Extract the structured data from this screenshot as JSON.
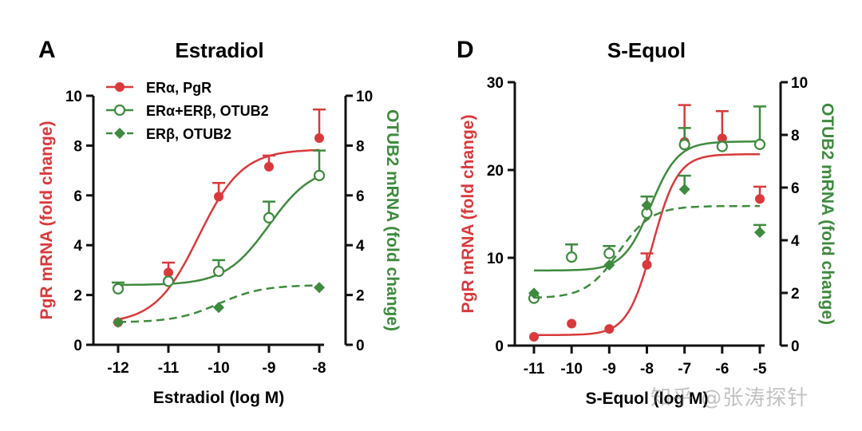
{
  "colors": {
    "red": "#d9393b",
    "green": "#3e8a3e",
    "axis": "#111111"
  },
  "watermark": "知乎 @张涛探针",
  "chart_data": [
    {
      "type": "line",
      "panel_label": "A",
      "title": "Estradiol",
      "xlabel": "Estradiol (log M)",
      "ylabel_left": "PgR mRNA (fold change)",
      "ylabel_right": "OTUB2 mRNA (fold change)",
      "xlim": [
        -12,
        -8
      ],
      "xticks": [
        -12,
        -11,
        -10,
        -9,
        -8
      ],
      "ylim_left": [
        0,
        10
      ],
      "yticks_left": [
        0,
        2,
        4,
        6,
        8,
        10
      ],
      "ylim_right": [
        0,
        10
      ],
      "yticks_right": [
        0,
        2,
        4,
        6,
        8,
        10
      ],
      "legend": {
        "placement": "top-left",
        "entries": [
          "ERα, PgR",
          "ERα+ERβ, OTUB2",
          "ERβ, OTUB2"
        ]
      },
      "series": [
        {
          "name": "ERα, PgR",
          "axis": "left",
          "color": "red",
          "marker": "filled-circle",
          "line": "solid",
          "x": [
            -12,
            -11,
            -10,
            -9,
            -8
          ],
          "y": [
            0.9,
            2.9,
            5.95,
            7.15,
            8.3
          ],
          "err_upper": [
            null,
            3.3,
            6.5,
            7.6,
            9.45
          ],
          "fit": {
            "bottom": 0.85,
            "top": 7.85,
            "logEC50": -10.4,
            "hill": 1
          }
        },
        {
          "name": "ERα+ERβ, OTUB2",
          "axis": "right",
          "color": "green",
          "marker": "open-circle",
          "line": "solid",
          "x": [
            -12,
            -11,
            -10,
            -9,
            -8
          ],
          "y": [
            2.25,
            2.55,
            2.95,
            5.1,
            6.8
          ],
          "err_upper": [
            2.5,
            null,
            3.4,
            5.75,
            7.8
          ],
          "fit": {
            "bottom": 2.4,
            "top": 7.2,
            "logEC50": -9.0,
            "hill": 1
          }
        },
        {
          "name": "ERβ, OTUB2",
          "axis": "right",
          "color": "green",
          "marker": "filled-diamond",
          "line": "dashed",
          "x": [
            -12,
            -10,
            -8
          ],
          "y": [
            0.9,
            1.5,
            2.3
          ],
          "err_upper": [
            null,
            null,
            null
          ],
          "fit": {
            "bottom": 0.9,
            "top": 2.4,
            "logEC50": -10,
            "hill": 1
          }
        }
      ]
    },
    {
      "type": "line",
      "panel_label": "D",
      "title": "S-Equol",
      "xlabel": "S-Equol (log M)",
      "ylabel_left": "PgR mRNA (fold change)",
      "ylabel_right": "OTUB2 mRNA (fold change)",
      "xlim": [
        -11,
        -5
      ],
      "xticks": [
        -11,
        -10,
        -9,
        -8,
        -7,
        -6,
        -5
      ],
      "ylim_left": [
        0,
        30
      ],
      "yticks_left": [
        0,
        10,
        20,
        30
      ],
      "ylim_right": [
        0,
        10
      ],
      "yticks_right": [
        0,
        2,
        4,
        6,
        8,
        10
      ],
      "series": [
        {
          "name": "ERα, PgR",
          "axis": "left",
          "color": "red",
          "marker": "filled-circle",
          "line": "solid",
          "x": [
            -11,
            -10,
            -9,
            -8,
            -7,
            -6,
            -5
          ],
          "y": [
            1.0,
            2.5,
            1.9,
            9.2,
            23.2,
            23.6,
            16.7
          ],
          "err_upper": [
            null,
            null,
            null,
            10.5,
            27.4,
            26.7,
            18.1
          ],
          "fit": {
            "bottom": 1.2,
            "top": 21.8,
            "logEC50": -7.85,
            "hill": 1.3
          }
        },
        {
          "name": "ERα+ERβ, OTUB2",
          "axis": "right",
          "color": "green",
          "marker": "open-circle",
          "line": "solid",
          "x": [
            -11,
            -10,
            -9,
            -8,
            -7,
            -6,
            -5
          ],
          "y": [
            1.8,
            3.36,
            3.5,
            5.03,
            7.63,
            7.56,
            7.64
          ],
          "err_upper": [
            null,
            3.84,
            3.78,
            null,
            8.26,
            null,
            9.08
          ],
          "fit": {
            "bottom": 2.85,
            "top": 7.75,
            "logEC50": -7.9,
            "hill": 1.2
          }
        },
        {
          "name": "ERβ, OTUB2",
          "axis": "right",
          "color": "green",
          "marker": "filled-diamond",
          "line": "dashed",
          "x": [
            -11,
            -9,
            -8,
            -7,
            -5
          ],
          "y": [
            1.99,
            3.06,
            5.33,
            5.93,
            4.3
          ],
          "err_upper": [
            null,
            null,
            5.66,
            6.45,
            4.58
          ],
          "fit": {
            "bottom": 1.8,
            "top": 5.3,
            "logEC50": -8.75,
            "hill": 1
          }
        }
      ]
    }
  ]
}
